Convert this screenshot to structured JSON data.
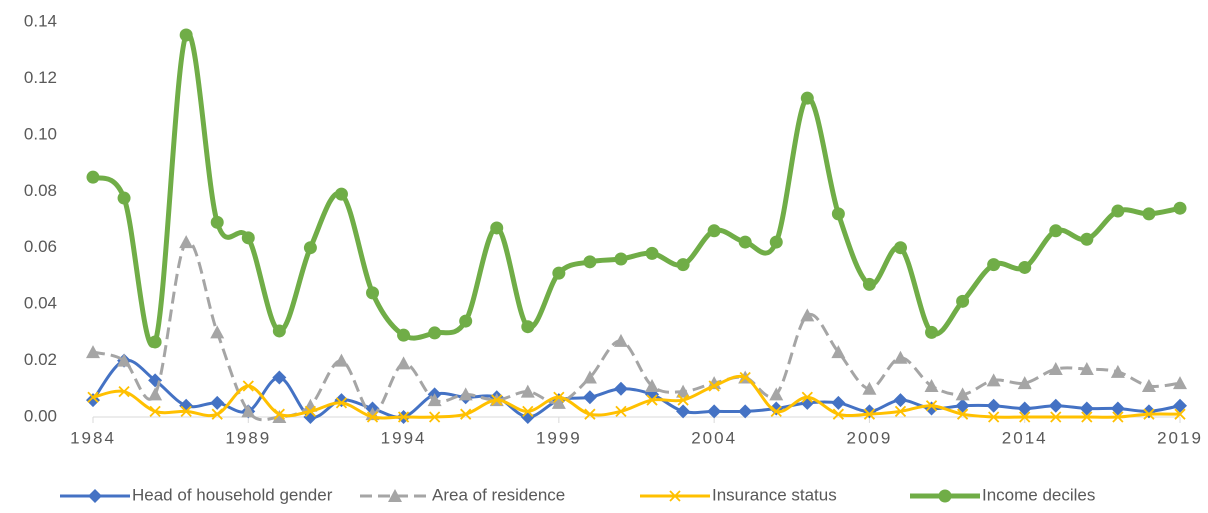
{
  "chart_data": {
    "type": "line",
    "smooth": true,
    "grid": false,
    "legend": "bottom",
    "x": [
      1984,
      1985,
      1986,
      1987,
      1988,
      1989,
      1990,
      1991,
      1992,
      1993,
      1994,
      1995,
      1996,
      1997,
      1998,
      1999,
      2000,
      2001,
      2002,
      2003,
      2004,
      2005,
      2006,
      2007,
      2008,
      2009,
      2010,
      2011,
      2012,
      2013,
      2014,
      2015,
      2016,
      2017,
      2018,
      2019
    ],
    "xlim": [
      1984,
      2019
    ],
    "xticks": [
      1984,
      1989,
      1994,
      1999,
      2004,
      2009,
      2014,
      2019
    ],
    "ylim": [
      0,
      0.14
    ],
    "yticks": [
      {
        "value": 0,
        "label": "0.00"
      },
      {
        "value": 0.02,
        "label": "0.02"
      },
      {
        "value": 0.04,
        "label": "0.04"
      },
      {
        "value": 0.06,
        "label": "0.06"
      },
      {
        "value": 0.08,
        "label": "0.08"
      },
      {
        "value": 0.1,
        "label": "0.10"
      },
      {
        "value": 0.12,
        "label": "0.12"
      },
      {
        "value": 0.14,
        "label": "0.14"
      }
    ],
    "series": [
      {
        "name": "Head of household gender",
        "color": "#4472c4",
        "marker": "diamond",
        "dash": false,
        "values": [
          0.006,
          0.02,
          0.013,
          0.004,
          0.005,
          0.002,
          0.014,
          0.0,
          0.006,
          0.003,
          0.0,
          0.008,
          0.007,
          0.007,
          0.0,
          0.006,
          0.007,
          0.01,
          0.008,
          0.002,
          0.002,
          0.002,
          0.003,
          0.005,
          0.005,
          0.002,
          0.006,
          0.003,
          0.004,
          0.004,
          0.003,
          0.004,
          0.003,
          0.003,
          0.002,
          0.004
        ]
      },
      {
        "name": "Area of residence",
        "color": "#a5a5a5",
        "marker": "triangle",
        "dash": true,
        "values": [
          0.023,
          0.02,
          0.008,
          0.062,
          0.03,
          0.002,
          0.0,
          0.004,
          0.02,
          0.001,
          0.019,
          0.006,
          0.008,
          0.006,
          0.009,
          0.005,
          0.014,
          0.027,
          0.011,
          0.009,
          0.012,
          0.014,
          0.008,
          0.036,
          0.023,
          0.01,
          0.021,
          0.011,
          0.008,
          0.013,
          0.012,
          0.017,
          0.017,
          0.016,
          0.011,
          0.012
        ]
      },
      {
        "name": "Insurance status",
        "color": "#ffc000",
        "marker": "x",
        "dash": false,
        "values": [
          0.007,
          0.009,
          0.002,
          0.002,
          0.001,
          0.011,
          0.001,
          0.002,
          0.005,
          0.0,
          0.0,
          0.0,
          0.001,
          0.006,
          0.002,
          0.007,
          0.001,
          0.002,
          0.006,
          0.006,
          0.011,
          0.014,
          0.002,
          0.007,
          0.001,
          0.001,
          0.002,
          0.004,
          0.001,
          0.0,
          0.0,
          0.0,
          0.0,
          0.0,
          0.001,
          0.001
        ]
      },
      {
        "name": "Income deciles",
        "color": "#70ad47",
        "marker": "circle",
        "dash": false,
        "values": [
          0.085,
          0.0776,
          0.0266,
          0.1354,
          0.069,
          0.0635,
          0.0305,
          0.06,
          0.079,
          0.044,
          0.029,
          0.0298,
          0.034,
          0.067,
          0.032,
          0.051,
          0.055,
          0.056,
          0.058,
          0.054,
          0.066,
          0.062,
          0.062,
          0.113,
          0.072,
          0.047,
          0.06,
          0.03,
          0.041,
          0.054,
          0.053,
          0.066,
          0.063,
          0.073,
          0.072,
          0.074
        ]
      }
    ]
  }
}
